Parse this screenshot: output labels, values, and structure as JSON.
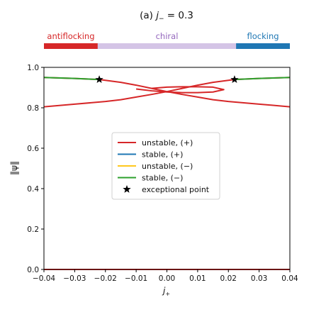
{
  "chart_data": {
    "type": "line",
    "title_prefix": "(a) ",
    "title_var": "j",
    "title_sub": "−",
    "title_rest": " = 0.3",
    "xlabel_var": "j",
    "xlabel_sub": "+",
    "ylabel": "‖ψ‖",
    "xlim": [
      -0.04,
      0.04
    ],
    "ylim": [
      0.0,
      1.0
    ],
    "xticks": [
      -0.04,
      -0.03,
      -0.02,
      -0.01,
      0.0,
      0.01,
      0.02,
      0.03,
      0.04
    ],
    "xtick_labels": [
      "−0.04",
      "−0.03",
      "−0.02",
      "−0.01",
      "0.00",
      "0.01",
      "0.02",
      "0.03",
      "0.04"
    ],
    "yticks": [
      0.0,
      0.2,
      0.4,
      0.6,
      0.8,
      1.0
    ],
    "ytick_labels": [
      "0.0",
      "0.2",
      "0.4",
      "0.6",
      "0.8",
      "1.0"
    ],
    "grid": false,
    "legend_position": "center",
    "phase_bar": [
      {
        "label": "antiflocking",
        "from": -0.04,
        "to": -0.0225,
        "color": "#d62728"
      },
      {
        "label": "chiral",
        "from": -0.0225,
        "to": 0.0225,
        "color": "#d4c4e6",
        "label_color": "#9467bd"
      },
      {
        "label": "flocking",
        "from": 0.0225,
        "to": 0.04,
        "color": "#1f77b4"
      }
    ],
    "series": [
      {
        "name": "unstable, (+)",
        "color": "#d62728",
        "segments": [
          [
            [
              -0.04,
              0.95
            ],
            [
              -0.03,
              0.945
            ],
            [
              -0.022,
              0.94
            ],
            [
              -0.015,
              0.926
            ],
            [
              -0.01,
              0.912
            ],
            [
              -0.005,
              0.896
            ],
            [
              0.0,
              0.88
            ],
            [
              0.005,
              0.866
            ],
            [
              0.01,
              0.853
            ],
            [
              0.015,
              0.84
            ],
            [
              0.02,
              0.831
            ],
            [
              0.03,
              0.818
            ],
            [
              0.04,
              0.805
            ]
          ],
          [
            [
              0.04,
              0.95
            ],
            [
              0.03,
              0.945
            ],
            [
              0.022,
              0.94
            ],
            [
              0.015,
              0.926
            ],
            [
              0.01,
              0.912
            ],
            [
              0.005,
              0.896
            ],
            [
              0.0,
              0.88
            ],
            [
              -0.005,
              0.866
            ],
            [
              -0.01,
              0.853
            ],
            [
              -0.015,
              0.84
            ],
            [
              -0.02,
              0.831
            ],
            [
              -0.03,
              0.818
            ],
            [
              -0.04,
              0.805
            ]
          ],
          [
            [
              -0.005,
              0.896
            ],
            [
              0.0,
              0.902
            ],
            [
              0.005,
              0.904
            ],
            [
              0.01,
              0.904
            ],
            [
              0.015,
              0.902
            ],
            [
              0.0185,
              0.89
            ],
            [
              0.015,
              0.878
            ],
            [
              0.01,
              0.875
            ],
            [
              0.005,
              0.875
            ],
            [
              0.0,
              0.878
            ],
            [
              -0.005,
              0.884
            ],
            [
              -0.01,
              0.893
            ]
          ],
          [
            [
              -0.04,
              0.0
            ],
            [
              0.04,
              0.0
            ]
          ]
        ]
      },
      {
        "name": "stable, (+)",
        "color": "#1f77b4",
        "segments": []
      },
      {
        "name": "unstable, (−)",
        "color": "#ffc81e",
        "segments": []
      },
      {
        "name": "stable, (−)",
        "color": "#2ca02c",
        "segments": [
          [
            [
              -0.04,
              0.95
            ],
            [
              -0.03,
              0.945
            ],
            [
              -0.022,
              0.94
            ]
          ],
          [
            [
              0.022,
              0.94
            ],
            [
              0.03,
              0.945
            ],
            [
              0.04,
              0.95
            ]
          ]
        ]
      }
    ],
    "exceptional_points": {
      "name": "exceptional point",
      "points": [
        [
          -0.022,
          0.94
        ],
        [
          0.022,
          0.94
        ]
      ]
    }
  }
}
